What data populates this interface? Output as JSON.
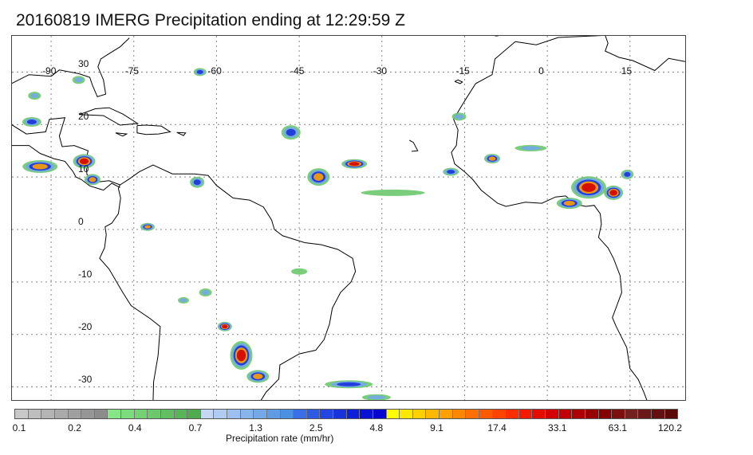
{
  "title": "20160819 IMERG Precipitation ending at 12:29:59 Z",
  "map": {
    "lon_labels": [
      "-90",
      "-75",
      "-60",
      "-45",
      "-30",
      "-15",
      "0",
      "15"
    ],
    "lat_labels": [
      "30",
      "20",
      "10",
      "0",
      "-10",
      "-20",
      "-30"
    ],
    "lon_values": [
      -90,
      -75,
      -60,
      -45,
      -30,
      -15,
      0,
      15
    ],
    "lat_values": [
      30,
      20,
      10,
      0,
      -10,
      -20,
      -30
    ],
    "grid": true,
    "colors": {
      "coast": "#000000",
      "grid": "#888888"
    }
  },
  "colorbar": {
    "title": "Precipitation rate (mm/hr)",
    "tick_labels": [
      "0.1",
      "0.2",
      "0.4",
      "0.7",
      "1.3",
      "2.5",
      "4.8",
      "9.1",
      "17.4",
      "33.1",
      "63.1",
      "120.2"
    ],
    "colors": [
      "#c8c8c8",
      "#bebebe",
      "#b4b4b4",
      "#aaaaaa",
      "#a0a0a0",
      "#969696",
      "#8c8c8c",
      "#86e686",
      "#7ddc7d",
      "#74d274",
      "#6bc86b",
      "#62be62",
      "#59b459",
      "#50aa50",
      "#c4d8f5",
      "#b0ccf2",
      "#9cc0ef",
      "#88b4ec",
      "#74a8e9",
      "#609ce6",
      "#4c90e3",
      "#3a6ee8",
      "#2e5ae4",
      "#2446e0",
      "#1a32dc",
      "#1020d8",
      "#0a12d4",
      "#0606d0",
      "#ffff00",
      "#ffe800",
      "#ffd000",
      "#ffb800",
      "#ffa000",
      "#ff8800",
      "#ff7000",
      "#ff5a00",
      "#ff4400",
      "#ff2e00",
      "#f41a00",
      "#e40c00",
      "#d40000",
      "#c00000",
      "#ac0000",
      "#980000",
      "#840000",
      "#7c1010",
      "#742020",
      "#6c1818",
      "#641010",
      "#5c0808"
    ]
  },
  "rain_colors": {
    "light": "#6bc86b",
    "moderate": "#74a8e9",
    "heavy": "#1a32dc",
    "intense": "#ffa000",
    "extreme": "#d40000",
    "trace": "#aaaaaa"
  }
}
